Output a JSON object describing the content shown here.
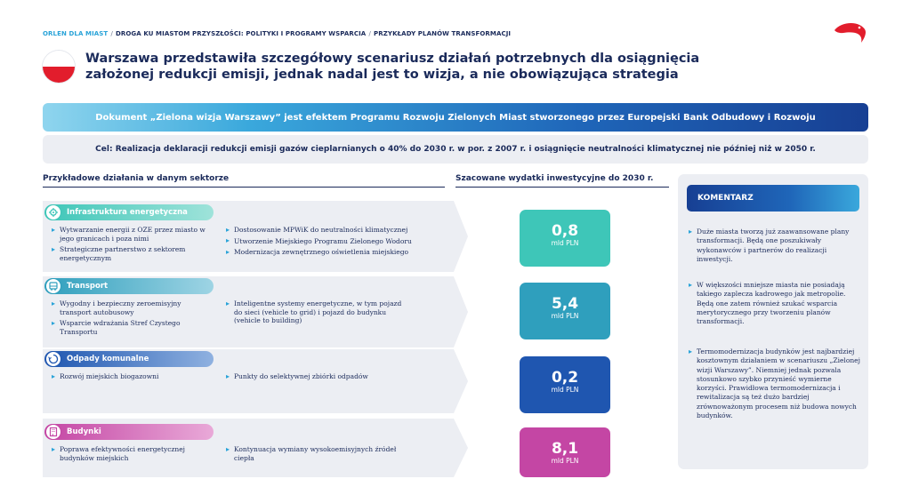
{
  "breadcrumb": {
    "item1": "ORLEN DLA MIAST",
    "item2": "DROGA KU MIASTOM PRZYSZŁOŚCI: POLITYKI I PROGRAMY WSPARCIA",
    "item3": "PRZYKŁADY PLANÓW TRANSFORMACJI",
    "separator": "/"
  },
  "title": "Warszawa przedstawiła szczegółowy scenariusz działań potrzebnych dla osiągnięcia założonej redukcji emisji, jednak nadal jest to wizja, a nie obowiązująca strategia",
  "banner": "Dokument „Zielona wizja Warszawy” jest efektem Programu Rozwoju Zielonych Miast stworzonego przez Europejski Bank Odbudowy i Rozwoju",
  "goal": "Cel: Realizacja deklaracji redukcji emisji gazów cieplarnianych o 40% do 2030 r. w por. z 2007 r. i osiągnięcie neutralności klimatycznej nie później niż w 2050 r.",
  "headers": {
    "actions": "Przykładowe działania w danym sektorze",
    "investment": "Szacowane wydatki inwestycyjne do 2030 r."
  },
  "sectors": [
    {
      "name": "Infrastruktura energetyczna",
      "color": "#3ec6b8",
      "icon": "energy-infrastructure-icon",
      "col1": [
        "Wytwarzanie energii z OZE przez miasto w jego granicach i poza nimi",
        "Strategiczne partnerstwo z sektorem energetycznym"
      ],
      "col2": [
        "Dostosowanie MPWiK do neutralności klimatycznej",
        "Utworzenie Miejskiego Programu Zielonego Wodoru",
        "Modernizacja zewnętrznego oświetlenia miejskiego"
      ],
      "cost_value": "0,8",
      "cost_unit": "mld PLN"
    },
    {
      "name": "Transport",
      "color": "#2f9fbd",
      "icon": "bus-icon",
      "col1": [
        "Wygodny i bezpieczny zeroemisyjny transport autobusowy",
        "Wsparcie wdrażania Stref Czystego Transportu"
      ],
      "col2": [
        "Inteligentne systemy energetyczne, w tym pojazd do sieci (vehicle to grid) i pojazd do budynku (vehicle to building)"
      ],
      "cost_value": "5,4",
      "cost_unit": "mld PLN"
    },
    {
      "name": "Odpady komunalne",
      "color": "#1f56b0",
      "icon": "recycling-icon",
      "col1": [
        "Rozwój miejskich biogazowni"
      ],
      "col2": [
        "Punkty do selektywnej zbiórki odpadów"
      ],
      "cost_value": "0,2",
      "cost_unit": "mld PLN"
    },
    {
      "name": "Budynki",
      "color": "#c446a4",
      "icon": "building-icon",
      "col1": [
        "Poprawa efektywności energetycznej budynków miejskich"
      ],
      "col2": [
        "Kontynuacja wymiany wysokoemisyjnych źródeł ciepła"
      ],
      "cost_value": "8,1",
      "cost_unit": "mld PLN"
    }
  ],
  "comment": {
    "header": "KOMENTARZ",
    "bullets": [
      "Duże miasta tworzą już zaawansowane plany transformacji. Będą one poszukiwały wykonawców i partnerów do realizacji inwestycji.",
      "W większości mniejsze miasta nie posiadają takiego zaplecza kadrowego jak metropolie. Będą one zatem również szukać wsparcia merytorycznego przy tworzeniu planów transformacji.",
      "Termomodernizacja budynków jest najbardziej kosztownym działaniem w scenariuszu „Zielonej wizji Warszawy”. Niemniej jednak pozwala stosunkowo szybko przynieść wymierne korzyści. Prawidłowa termomodernizacja i rewitalizacja są też dużo bardziej zrównoważonym procesem niż budowa nowych budynków."
    ]
  }
}
